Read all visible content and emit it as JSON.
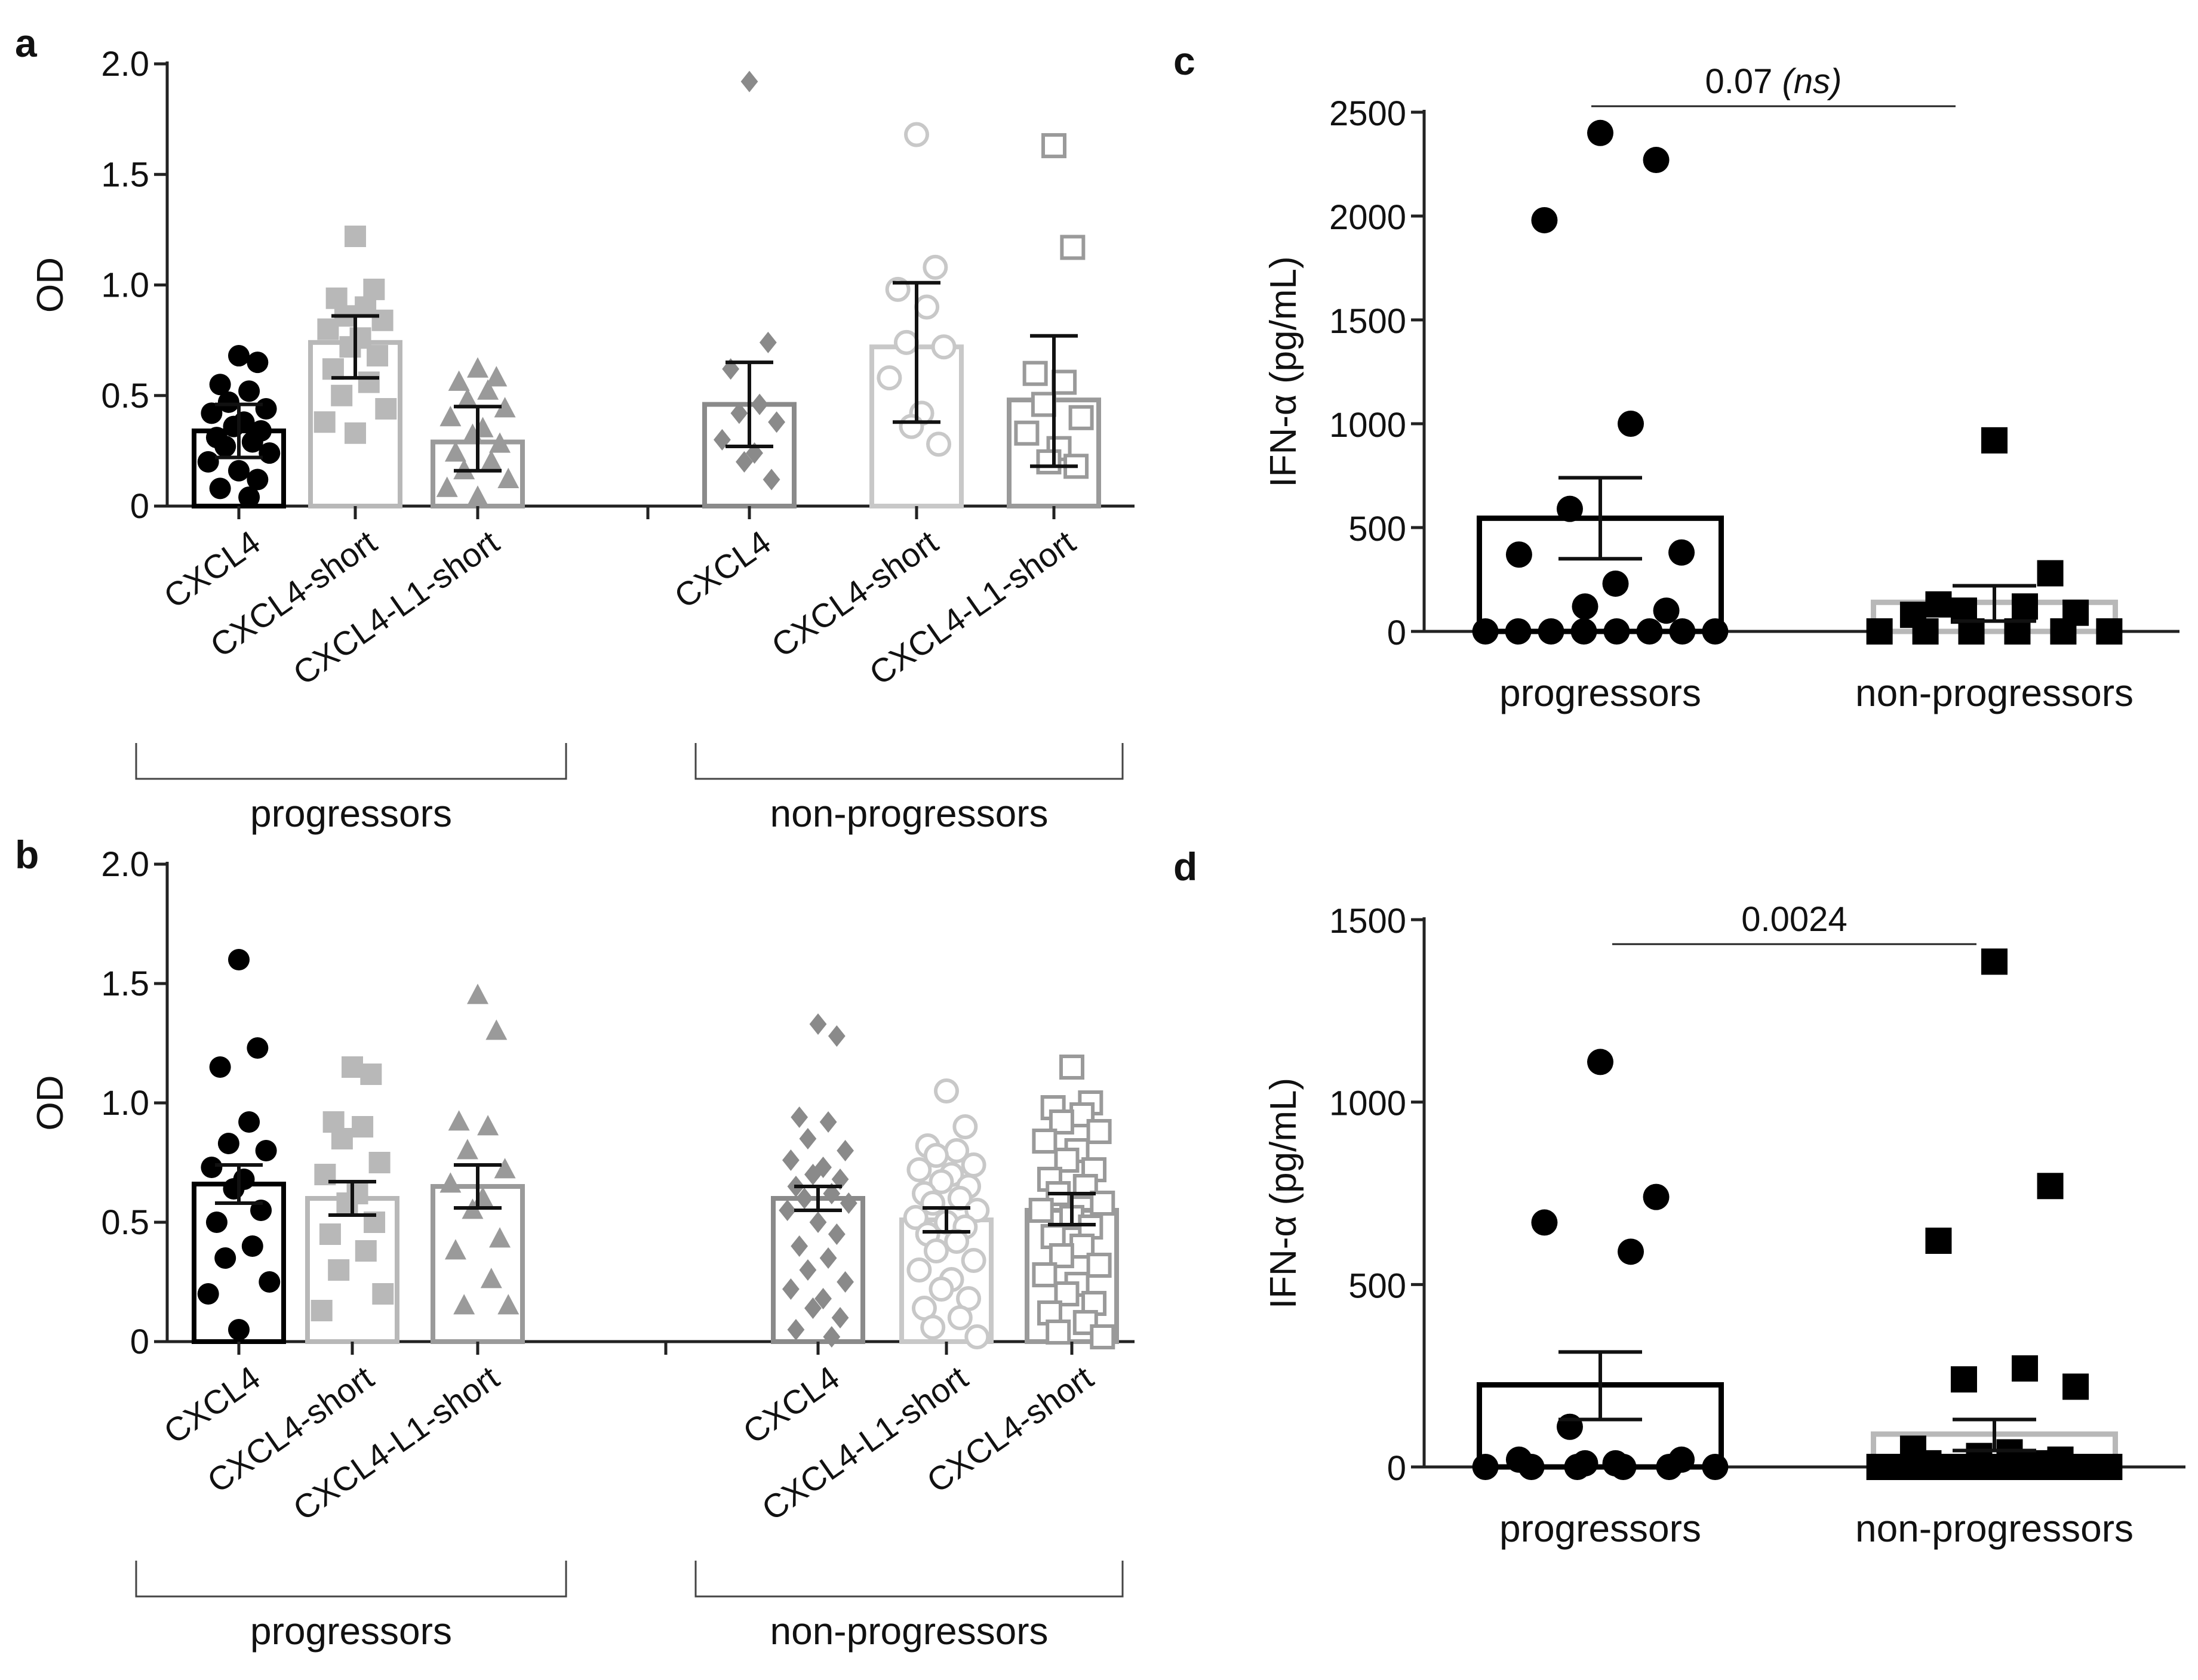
{
  "chart_data": [
    {
      "type": "bar",
      "panel": "a",
      "ylabel": "OD",
      "ylim": [
        0,
        2.0
      ],
      "yticks": [
        "0",
        "0.5",
        "1.0",
        "1.5",
        "2.0"
      ],
      "groups": [
        {
          "label": "progressors",
          "categories": [
            "CXCL4",
            "CXCL4-short",
            "CXCL4-L1-short"
          ]
        },
        {
          "label": "non-progressors",
          "categories": [
            "CXCL4",
            "CXCL4-short",
            "CXCL4-L1-short"
          ]
        }
      ],
      "series": [
        {
          "group": 0,
          "category": "CXCL4",
          "color": "#000000",
          "marker": "circle",
          "filled": true,
          "mean": 0.34,
          "err": [
            0.22,
            0.46
          ],
          "points": [
            0.68,
            0.65,
            0.55,
            0.52,
            0.47,
            0.44,
            0.42,
            0.38,
            0.36,
            0.34,
            0.31,
            0.29,
            0.27,
            0.24,
            0.2,
            0.16,
            0.12,
            0.08,
            0.04
          ]
        },
        {
          "group": 0,
          "category": "CXCL4-short",
          "color": "#b8b8b8",
          "marker": "square",
          "filled": true,
          "mean": 0.74,
          "err": [
            0.58,
            0.86
          ],
          "points": [
            1.22,
            0.98,
            0.94,
            0.9,
            0.86,
            0.84,
            0.8,
            0.76,
            0.72,
            0.68,
            0.62,
            0.56,
            0.5,
            0.44,
            0.38,
            0.33
          ]
        },
        {
          "group": 0,
          "category": "CXCL4-L1-short",
          "color": "#9a9a9a",
          "marker": "triangle",
          "filled": true,
          "mean": 0.29,
          "err": [
            0.16,
            0.45
          ],
          "points": [
            0.62,
            0.58,
            0.56,
            0.52,
            0.48,
            0.44,
            0.4,
            0.35,
            0.32,
            0.28,
            0.24,
            0.2,
            0.16,
            0.12,
            0.08,
            0.04
          ]
        },
        {
          "group": 1,
          "category": "CXCL4",
          "color": "#8a8a8a",
          "marker": "diamond",
          "filled": true,
          "mean": 0.46,
          "err": [
            0.27,
            0.65
          ],
          "points": [
            1.92,
            0.74,
            0.62,
            0.46,
            0.42,
            0.38,
            0.3,
            0.24,
            0.2,
            0.12
          ]
        },
        {
          "group": 1,
          "category": "CXCL4-short",
          "color": "#c8c8c8",
          "marker": "circle",
          "filled": false,
          "mean": 0.72,
          "err": [
            0.38,
            1.01
          ],
          "points": [
            1.68,
            1.08,
            0.98,
            0.9,
            0.74,
            0.72,
            0.58,
            0.42,
            0.36,
            0.28
          ]
        },
        {
          "group": 1,
          "category": "CXCL4-L1-short",
          "color": "#9a9a9a",
          "marker": "square",
          "filled": false,
          "mean": 0.48,
          "err": [
            0.18,
            0.77
          ],
          "points": [
            1.63,
            1.17,
            0.6,
            0.56,
            0.46,
            0.4,
            0.33,
            0.26,
            0.2,
            0.18
          ]
        }
      ]
    },
    {
      "type": "bar",
      "panel": "b",
      "ylabel": "OD",
      "ylim": [
        0,
        2.0
      ],
      "yticks": [
        "0",
        "0.5",
        "1.0",
        "1.5",
        "2.0"
      ],
      "groups": [
        {
          "label": "progressors",
          "categories": [
            "CXCL4",
            "CXCL4-short",
            "CXCL4-L1-short"
          ]
        },
        {
          "label": "non-progressors",
          "categories": [
            "CXCL4",
            "CXCL4-L1-short",
            "CXCL4-short"
          ]
        }
      ],
      "series": [
        {
          "group": 0,
          "category": "CXCL4",
          "color": "#000000",
          "marker": "circle",
          "filled": true,
          "mean": 0.66,
          "err": [
            0.58,
            0.74
          ],
          "points": [
            1.6,
            1.23,
            1.15,
            0.92,
            0.83,
            0.8,
            0.73,
            0.68,
            0.64,
            0.55,
            0.5,
            0.4,
            0.35,
            0.25,
            0.2,
            0.05
          ]
        },
        {
          "group": 0,
          "category": "CXCL4-short",
          "color": "#b8b8b8",
          "marker": "square",
          "filled": true,
          "mean": 0.6,
          "err": [
            0.53,
            0.67
          ],
          "points": [
            1.15,
            1.12,
            0.92,
            0.9,
            0.85,
            0.75,
            0.7,
            0.62,
            0.58,
            0.5,
            0.45,
            0.38,
            0.3,
            0.2,
            0.13
          ]
        },
        {
          "group": 0,
          "category": "CXCL4-L1-short",
          "color": "#9a9a9a",
          "marker": "triangle",
          "filled": true,
          "mean": 0.65,
          "err": [
            0.56,
            0.74
          ],
          "points": [
            1.45,
            1.3,
            0.92,
            0.9,
            0.8,
            0.72,
            0.66,
            0.6,
            0.55,
            0.43,
            0.38,
            0.26,
            0.15,
            0.15
          ]
        },
        {
          "group": 1,
          "category": "CXCL4",
          "color": "#8a8a8a",
          "marker": "diamond",
          "filled": true,
          "mean": 0.6,
          "err": [
            0.55,
            0.65
          ],
          "points": [
            1.33,
            1.28,
            0.94,
            0.92,
            0.85,
            0.8,
            0.76,
            0.73,
            0.7,
            0.68,
            0.65,
            0.62,
            0.6,
            0.58,
            0.55,
            0.5,
            0.45,
            0.4,
            0.35,
            0.3,
            0.25,
            0.22,
            0.18,
            0.14,
            0.1,
            0.05,
            0.02
          ]
        },
        {
          "group": 1,
          "category": "CXCL4-L1-short",
          "color": "#c8c8c8",
          "marker": "circle",
          "filled": false,
          "mean": 0.51,
          "err": [
            0.46,
            0.56
          ],
          "points": [
            1.05,
            0.9,
            0.82,
            0.8,
            0.78,
            0.74,
            0.72,
            0.7,
            0.67,
            0.65,
            0.62,
            0.6,
            0.58,
            0.55,
            0.52,
            0.5,
            0.48,
            0.45,
            0.42,
            0.38,
            0.34,
            0.3,
            0.26,
            0.22,
            0.18,
            0.14,
            0.1,
            0.06,
            0.02
          ]
        },
        {
          "group": 1,
          "category": "CXCL4-short",
          "color": "#9a9a9a",
          "marker": "square",
          "filled": false,
          "mean": 0.55,
          "err": [
            0.49,
            0.62
          ],
          "points": [
            1.15,
            1.0,
            0.98,
            0.95,
            0.92,
            0.88,
            0.84,
            0.8,
            0.76,
            0.72,
            0.68,
            0.65,
            0.62,
            0.58,
            0.55,
            0.52,
            0.48,
            0.44,
            0.4,
            0.36,
            0.32,
            0.28,
            0.24,
            0.2,
            0.16,
            0.12,
            0.08,
            0.04,
            0.02
          ]
        }
      ]
    },
    {
      "type": "bar",
      "panel": "c",
      "ylabel": "IFN-α (pg/mL)",
      "ylim": [
        0,
        2500
      ],
      "yticks": [
        "0",
        "500",
        "1000",
        "1500",
        "2000",
        "2500"
      ],
      "categories": [
        "progressors",
        "non-progressors"
      ],
      "annotation": {
        "text": "0.07",
        "suffix": "(ns)"
      },
      "series": [
        {
          "category": "progressors",
          "color": "#000000",
          "marker": "circle",
          "mean": 545,
          "err": [
            350,
            740
          ],
          "points": [
            2400,
            2270,
            1980,
            1000,
            590,
            380,
            370,
            230,
            120,
            100,
            0,
            0,
            0,
            0,
            0,
            0,
            0,
            0
          ]
        },
        {
          "category": "non-progressors",
          "color": "#b8b8b8",
          "marker": "square",
          "mean": 140,
          "err": [
            50,
            220
          ],
          "points": [
            920,
            280,
            130,
            120,
            100,
            90,
            80,
            0,
            0,
            0,
            0,
            0,
            0
          ]
        }
      ]
    },
    {
      "type": "bar",
      "panel": "d",
      "ylabel": "IFN-α (pg/mL)",
      "ylim": [
        0,
        1500
      ],
      "yticks": [
        "0",
        "500",
        "1000",
        "1500"
      ],
      "categories": [
        "progressors",
        "non-progressors"
      ],
      "annotation": {
        "text": "0.0024",
        "suffix": ""
      },
      "series": [
        {
          "category": "progressors",
          "color": "#000000",
          "marker": "circle",
          "mean": 225,
          "err": [
            130,
            315
          ],
          "points": [
            1110,
            740,
            670,
            590,
            110,
            20,
            20,
            10,
            10,
            0,
            0,
            0,
            0,
            0,
            0
          ]
        },
        {
          "category": "non-progressors",
          "color": "#b8b8b8",
          "marker": "square",
          "mean": 90,
          "err": [
            45,
            130
          ],
          "points": [
            1385,
            770,
            620,
            270,
            240,
            220,
            50,
            40,
            30,
            20,
            10,
            10,
            0,
            0,
            0,
            0,
            0,
            0,
            0,
            0,
            0,
            0,
            0,
            0,
            0,
            0,
            0,
            0,
            0,
            0
          ]
        }
      ]
    }
  ]
}
